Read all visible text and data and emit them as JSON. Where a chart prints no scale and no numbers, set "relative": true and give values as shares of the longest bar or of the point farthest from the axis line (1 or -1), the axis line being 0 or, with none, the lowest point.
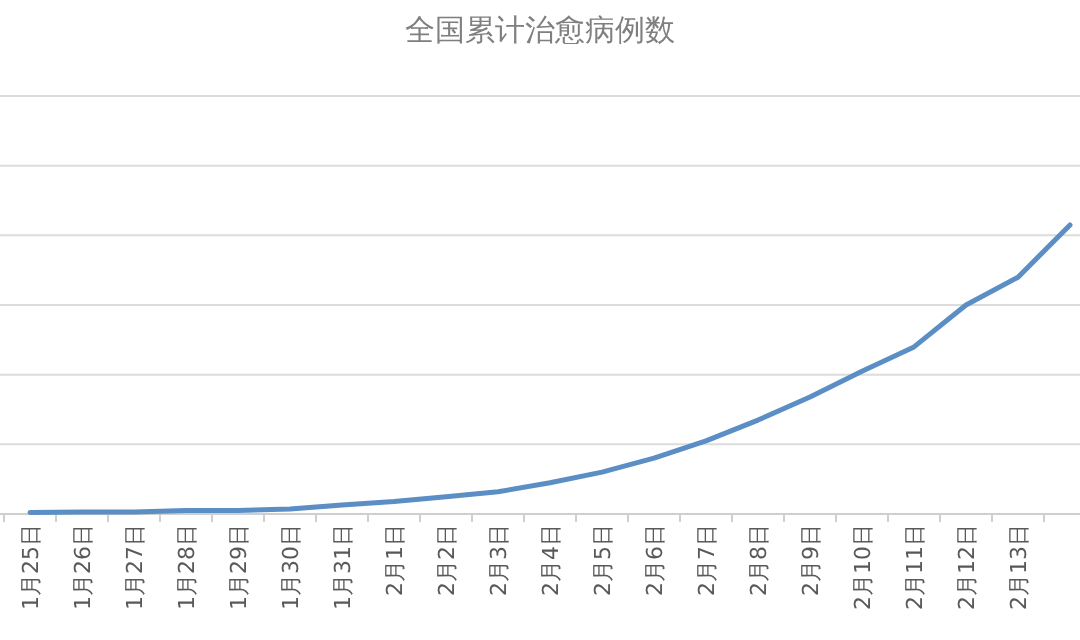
{
  "chart_data": {
    "type": "line",
    "title": "全国累计治愈病例数",
    "relative": true,
    "grid": "y",
    "color": "#5b8ec4",
    "categories": [
      "1月25日",
      "1月26日",
      "1月27日",
      "1月28日",
      "1月29日",
      "1月30日",
      "1月31日",
      "2月1日",
      "2月2日",
      "2月3日",
      "2月4日",
      "2月5日",
      "2月6日",
      "2月7日",
      "2月8日",
      "2月9日",
      "2月10日",
      "2月11日",
      "2月12日",
      "2月13日",
      null
    ],
    "values": [
      0.005,
      0.007,
      0.007,
      0.012,
      0.012,
      0.017,
      0.031,
      0.043,
      0.06,
      0.077,
      0.108,
      0.145,
      0.193,
      0.253,
      0.325,
      0.405,
      0.494,
      0.578,
      0.723,
      0.819,
      1
    ]
  }
}
